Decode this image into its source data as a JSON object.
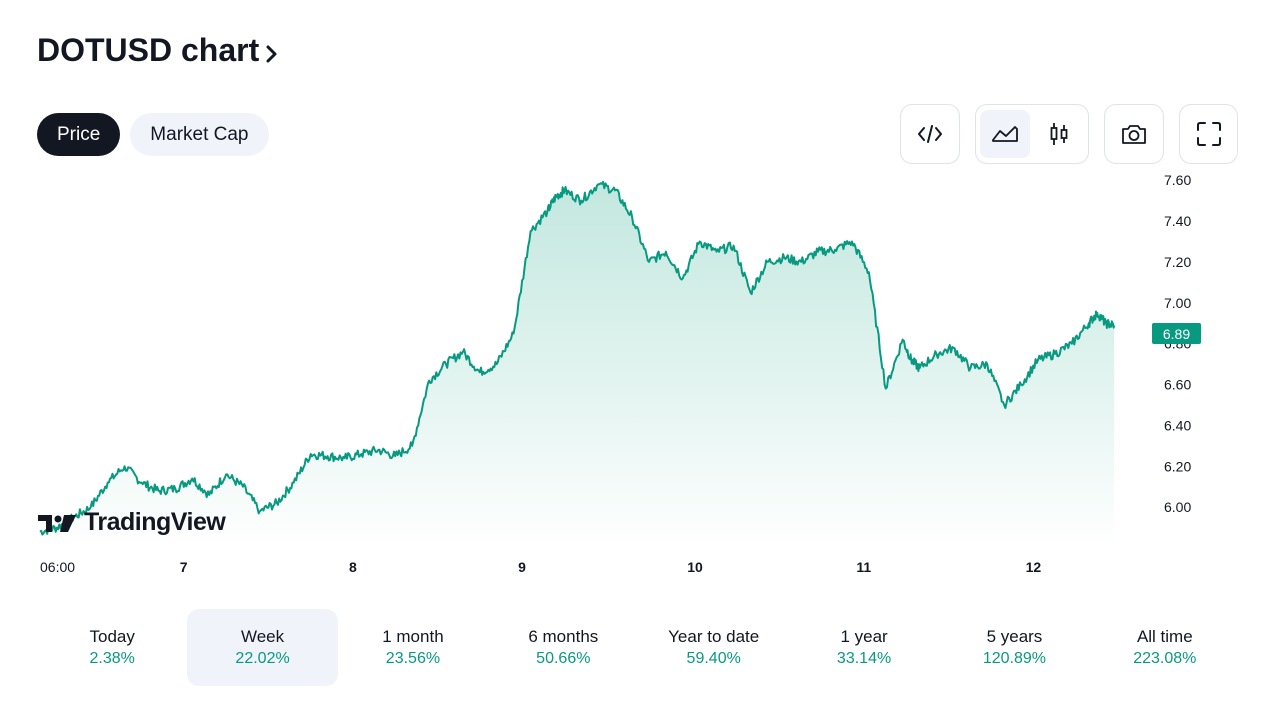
{
  "header": {
    "title": "DOTUSD chart"
  },
  "toggle": {
    "price_label": "Price",
    "market_cap_label": "Market Cap",
    "selected": "Price"
  },
  "toolbar": {
    "embed_icon": "code-icon",
    "area_icon": "area-chart-icon",
    "candles_icon": "candlestick-icon",
    "snapshot_icon": "camera-icon",
    "fullscreen_icon": "fullscreen-icon",
    "selected_style": "area"
  },
  "brand": {
    "logo_text": "TradingView"
  },
  "colors": {
    "line": "#089981",
    "fill_top": "#bfe6dd",
    "fill_bottom": "#ffffff",
    "text": "#131722",
    "pill_bg": "#f0f3fa"
  },
  "chart_data": {
    "type": "area",
    "symbol": "DOTUSD",
    "x_ticks": [
      "06:00",
      "7",
      "8",
      "9",
      "10",
      "11",
      "12"
    ],
    "y_ticks": [
      "6.00",
      "6.20",
      "6.40",
      "6.60",
      "6.80",
      "7.00",
      "7.20",
      "7.40",
      "7.60"
    ],
    "ylim": [
      5.8,
      7.65
    ],
    "xlim": [
      0,
      6.55
    ],
    "last_price": "6.89",
    "grid": false,
    "series": [
      {
        "x": [
          0,
          0.1,
          0.2,
          0.3,
          0.4,
          0.5,
          0.6,
          0.7,
          0.8,
          0.9,
          1.0,
          1.1,
          1.2,
          1.3,
          1.4,
          1.5,
          1.6,
          1.7,
          1.8,
          1.9,
          2.0,
          2.1,
          2.2,
          2.3,
          2.4,
          2.5,
          2.6,
          2.7,
          2.8,
          2.9,
          3.0,
          3.05,
          3.1,
          3.2,
          3.3,
          3.4,
          3.5,
          3.6,
          3.7,
          3.8,
          3.9,
          4.0,
          4.1,
          4.2,
          4.3,
          4.4,
          4.5,
          4.6,
          4.7,
          4.8,
          4.9,
          5.0,
          5.1,
          5.15,
          5.2,
          5.3,
          5.4,
          5.5,
          5.6,
          5.7,
          5.8,
          5.9,
          6.0,
          6.1,
          6.2,
          6.25,
          6.3,
          6.35
        ],
        "y": [
          5.88,
          5.9,
          5.95,
          6.0,
          6.12,
          6.2,
          6.12,
          6.08,
          6.09,
          6.14,
          6.06,
          6.16,
          6.1,
          5.98,
          6.02,
          6.12,
          6.26,
          6.25,
          6.24,
          6.26,
          6.28,
          6.25,
          6.3,
          6.62,
          6.7,
          6.76,
          6.66,
          6.7,
          6.85,
          7.35,
          7.45,
          7.52,
          7.55,
          7.5,
          7.58,
          7.55,
          7.42,
          7.2,
          7.25,
          7.12,
          7.3,
          7.25,
          7.28,
          7.05,
          7.2,
          7.22,
          7.2,
          7.25,
          7.26,
          7.3,
          7.15,
          6.58,
          6.82,
          6.72,
          6.68,
          6.75,
          6.78,
          6.68,
          6.7,
          6.5,
          6.6,
          6.72,
          6.75,
          6.8,
          6.9,
          6.95,
          6.9,
          6.89
        ],
        "yvals_note": ""
      }
    ]
  }
}
